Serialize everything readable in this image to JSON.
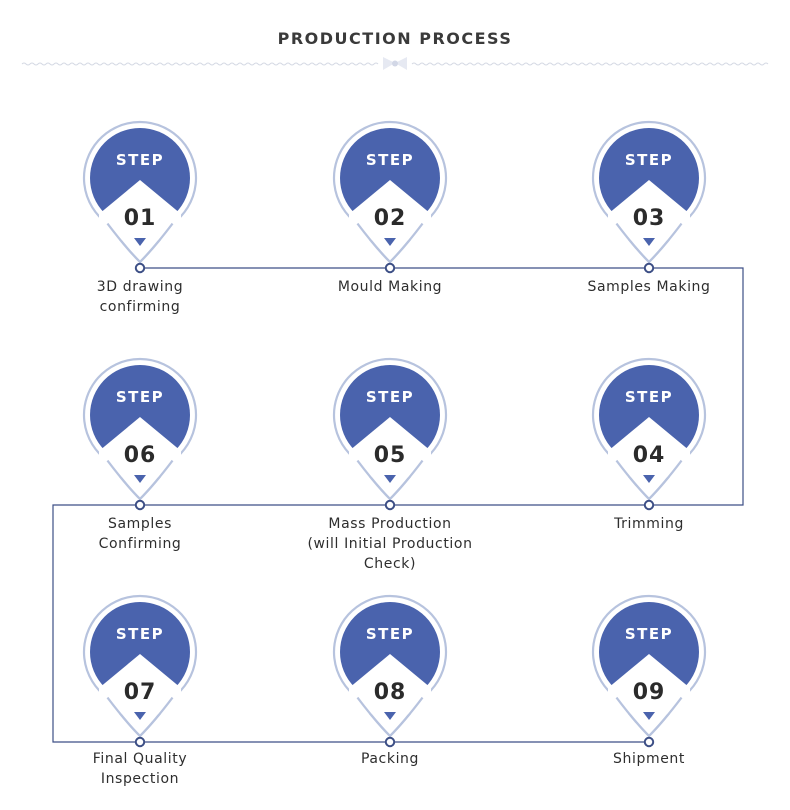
{
  "header": {
    "title": "PRODUCTION PROCESS"
  },
  "colors": {
    "accent": "#4a63ad",
    "ring": "#b7c3de",
    "line": "#3d4f86",
    "text": "#333333"
  },
  "steps": [
    {
      "badge": "STEP",
      "number": "01",
      "label": "3D drawing\nconfirming"
    },
    {
      "badge": "STEP",
      "number": "02",
      "label": "Mould Making"
    },
    {
      "badge": "STEP",
      "number": "03",
      "label": "Samples Making"
    },
    {
      "badge": "STEP",
      "number": "06",
      "label": "Samples\nConfirming"
    },
    {
      "badge": "STEP",
      "number": "05",
      "label": "Mass Production\n(will Initial Production Check)"
    },
    {
      "badge": "STEP",
      "number": "04",
      "label": "Trimming"
    },
    {
      "badge": "STEP",
      "number": "07",
      "label": "Final Quality\nInspection"
    },
    {
      "badge": "STEP",
      "number": "08",
      "label": "Packing"
    },
    {
      "badge": "STEP",
      "number": "09",
      "label": "Shipment"
    }
  ]
}
